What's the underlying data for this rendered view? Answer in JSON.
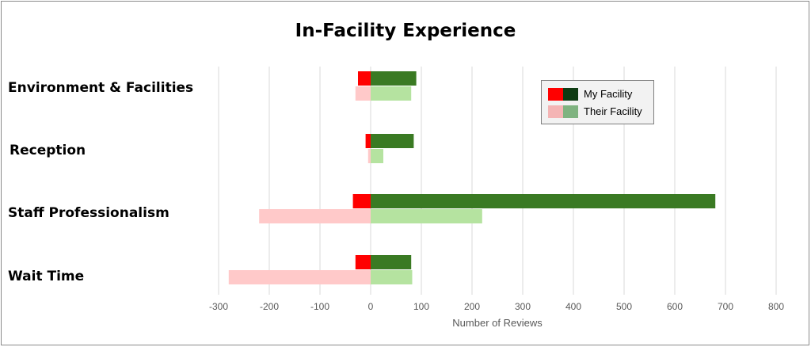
{
  "chart_data": {
    "type": "bar",
    "orientation": "horizontal",
    "title": "In-Facility Experience",
    "xlabel": "Number of Reviews",
    "ylabel": "",
    "xlim": [
      -300,
      800
    ],
    "xticks": [
      -300,
      -200,
      -100,
      0,
      100,
      200,
      300,
      400,
      500,
      600,
      700,
      800
    ],
    "grid": true,
    "legend_position": "top-right",
    "categories": [
      "Environment & Facilities",
      "Reception",
      "Staff Professionalism",
      "Wait Time"
    ],
    "series": [
      {
        "name": "My Facility",
        "negative_color": "#ff0000",
        "positive_color": "#0e3b12",
        "bar_color": "#3a7a23",
        "negative": [
          -25,
          -10,
          -35,
          -30
        ],
        "positive": [
          90,
          85,
          680,
          80
        ]
      },
      {
        "name": "Their Facility",
        "negative_color": "#f4b4b4",
        "positive_color": "#7fb380",
        "bar_color": "#b5e3a0",
        "neg_bar_color": "#ffc9c9",
        "negative": [
          -30,
          -5,
          -220,
          -280
        ],
        "positive": [
          80,
          25,
          220,
          82
        ]
      }
    ]
  }
}
